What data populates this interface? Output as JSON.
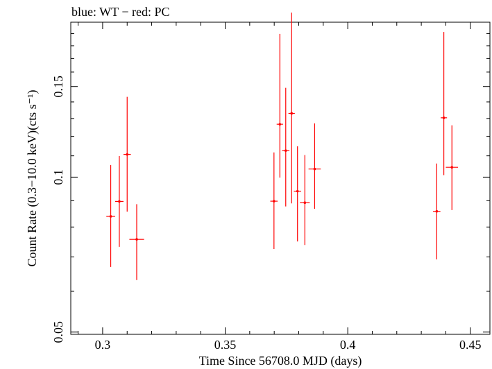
{
  "chart_data": {
    "type": "scatter",
    "title": "blue: WT − red: PC",
    "xlabel": "Time Since 56708.0 MJD (days)",
    "ylabel": "Count Rate (0.3−10.0 keV)(cts s⁻¹)",
    "xlim": [
      0.287,
      0.458
    ],
    "ylim": [
      0.0495,
      0.2
    ],
    "y_scale": "log",
    "x_ticks": [
      {
        "value": 0.3,
        "label": "0.3"
      },
      {
        "value": 0.35,
        "label": "0.35"
      },
      {
        "value": 0.4,
        "label": "0.4"
      },
      {
        "value": 0.45,
        "label": "0.45"
      }
    ],
    "y_ticks": [
      {
        "value": 0.05,
        "label": "0.05"
      },
      {
        "value": 0.1,
        "label": "0.1"
      },
      {
        "value": 0.15,
        "label": "0.15"
      }
    ],
    "grid": false,
    "series": [
      {
        "name": "PC",
        "color": "#ff0000",
        "points": [
          {
            "x": 0.3033,
            "y": 0.0839,
            "xerr": 0.0018,
            "ylo": 0.0669,
            "yhi": 0.1056
          },
          {
            "x": 0.3068,
            "y": 0.0897,
            "xerr": 0.0017,
            "ylo": 0.0732,
            "yhi": 0.1099
          },
          {
            "x": 0.31,
            "y": 0.1107,
            "xerr": 0.0015,
            "ylo": 0.0857,
            "yhi": 0.1432
          },
          {
            "x": 0.3139,
            "y": 0.0757,
            "xerr": 0.003,
            "ylo": 0.0631,
            "yhi": 0.0886
          },
          {
            "x": 0.3699,
            "y": 0.0898,
            "xerr": 0.0015,
            "ylo": 0.0725,
            "yhi": 0.1117
          },
          {
            "x": 0.3723,
            "y": 0.1267,
            "xerr": 0.0013,
            "ylo": 0.0998,
            "yhi": 0.1898
          },
          {
            "x": 0.3747,
            "y": 0.1126,
            "xerr": 0.0015,
            "ylo": 0.0877,
            "yhi": 0.1491
          },
          {
            "x": 0.3771,
            "y": 0.133,
            "xerr": 0.0013,
            "ylo": 0.0889,
            "yhi": 0.2087
          },
          {
            "x": 0.3795,
            "y": 0.0939,
            "xerr": 0.0015,
            "ylo": 0.075,
            "yhi": 0.1148
          },
          {
            "x": 0.3825,
            "y": 0.0892,
            "xerr": 0.002,
            "ylo": 0.0738,
            "yhi": 0.1104
          },
          {
            "x": 0.3865,
            "y": 0.1037,
            "xerr": 0.0025,
            "ylo": 0.0868,
            "yhi": 0.1272
          },
          {
            "x": 0.4363,
            "y": 0.0858,
            "xerr": 0.0015,
            "ylo": 0.0692,
            "yhi": 0.1063
          },
          {
            "x": 0.4392,
            "y": 0.1304,
            "xerr": 0.0013,
            "ylo": 0.1009,
            "yhi": 0.1914
          },
          {
            "x": 0.4425,
            "y": 0.1045,
            "xerr": 0.0025,
            "ylo": 0.0863,
            "yhi": 0.1261
          }
        ]
      }
    ]
  }
}
